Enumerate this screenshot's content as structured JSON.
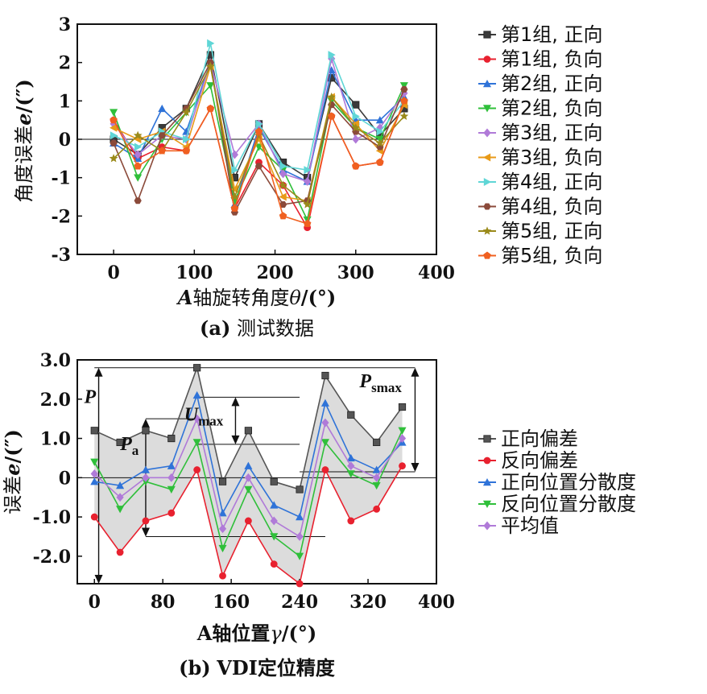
{
  "chart_data": [
    {
      "type": "line",
      "title": "",
      "caption_label": "(a)",
      "caption_text": "测试数据",
      "xlabel_var": "A",
      "xlabel_text": "轴旋转角度",
      "xlabel_sym": "θ",
      "xlabel_unit": "/(°)",
      "ylabel_text": "角度误差",
      "ylabel_sym": "e",
      "ylabel_unit": "/(″)",
      "xlim": [
        -45,
        400
      ],
      "ylim": [
        -3,
        3
      ],
      "xticks": [
        0,
        100,
        200,
        300,
        400
      ],
      "yticks": [
        -3,
        -2,
        -1,
        0,
        1,
        2,
        3
      ],
      "grid": false,
      "legend_position": "right",
      "x": [
        0,
        30,
        60,
        90,
        120,
        150,
        180,
        210,
        240,
        270,
        300,
        330,
        360
      ],
      "series": [
        {
          "name": "第1组, 正向",
          "marker": "square",
          "color": "#3a3a3a",
          "values": [
            0.0,
            -0.4,
            0.3,
            0.8,
            2.2,
            -1.0,
            0.4,
            -0.6,
            -1.0,
            1.6,
            0.9,
            0.1,
            0.8
          ]
        },
        {
          "name": "第1组, 负向",
          "marker": "circle",
          "color": "#e8212f",
          "values": [
            0.5,
            -0.5,
            -0.2,
            -0.3,
            0.8,
            -1.8,
            -0.6,
            -1.2,
            -2.3,
            0.6,
            -0.7,
            -0.6,
            1.0
          ]
        },
        {
          "name": "第2组, 正向",
          "marker": "triangle-up",
          "color": "#2f73d8",
          "values": [
            -0.1,
            -0.5,
            0.8,
            0.2,
            2.0,
            -1.7,
            0.3,
            -0.8,
            -1.1,
            1.8,
            0.5,
            0.5,
            1.1
          ]
        },
        {
          "name": "第2组, 负向",
          "marker": "triangle-down",
          "color": "#2fbf3a",
          "values": [
            0.7,
            -1.0,
            0.0,
            0.7,
            1.4,
            -1.6,
            -0.2,
            -0.8,
            -2.1,
            1.0,
            0.3,
            0.0,
            1.4
          ]
        },
        {
          "name": "第3组, 正向",
          "marker": "diamond",
          "color": "#b07ad8",
          "values": [
            0.4,
            -0.4,
            0.1,
            0.0,
            2.0,
            -0.4,
            0.4,
            -0.9,
            -1.1,
            2.1,
            0.0,
            0.3,
            1.2
          ]
        },
        {
          "name": "第3组, 负向",
          "marker": "triangle-left",
          "color": "#e89a18",
          "values": [
            0.3,
            0.0,
            0.2,
            -0.2,
            1.9,
            -1.3,
            0.0,
            -1.5,
            -1.6,
            1.1,
            0.4,
            -0.3,
            0.9
          ]
        },
        {
          "name": "第4组, 正向",
          "marker": "triangle-right",
          "color": "#5fd6d6",
          "values": [
            0.1,
            -0.2,
            0.2,
            0.0,
            2.5,
            -0.8,
            0.4,
            -0.7,
            -0.8,
            2.2,
            0.6,
            0.2,
            1.0
          ]
        },
        {
          "name": "第4组, 负向",
          "marker": "hexagon",
          "color": "#8b4a3a",
          "values": [
            -0.1,
            -1.6,
            0.1,
            0.8,
            2.0,
            -1.9,
            -0.7,
            -1.7,
            -1.6,
            0.9,
            0.2,
            -0.2,
            1.3
          ]
        },
        {
          "name": "第5组, 正向",
          "marker": "star",
          "color": "#9a8a1a",
          "values": [
            -0.5,
            0.1,
            -0.3,
            0.7,
            1.9,
            -1.5,
            0.1,
            -1.2,
            -1.7,
            1.1,
            0.3,
            -0.1,
            0.6
          ]
        },
        {
          "name": "第5组, 负向",
          "marker": "pentagon",
          "color": "#f06020",
          "values": [
            0.5,
            -0.7,
            -0.3,
            -0.3,
            0.8,
            -1.8,
            0.2,
            -2.0,
            -2.2,
            0.6,
            -0.7,
            -0.6,
            1.0
          ]
        }
      ]
    },
    {
      "type": "line",
      "title": "",
      "caption_label": "(b)",
      "caption_text": "VDI定位精度",
      "xlabel_text": "A轴位置",
      "xlabel_sym": "γ",
      "xlabel_unit": "/(°)",
      "ylabel_text": "误差",
      "ylabel_sym": "e",
      "ylabel_unit": "/(″)",
      "xlim": [
        -20,
        400
      ],
      "ylim": [
        -2.7,
        3.0
      ],
      "xticks": [
        0,
        80,
        160,
        240,
        320,
        400
      ],
      "yticks": [
        -2.0,
        -1.0,
        0,
        1.0,
        2.0,
        3.0
      ],
      "ytick_labels": [
        "-2.0",
        "-1.0",
        "0",
        "1.0",
        "2.0",
        "3.0"
      ],
      "grid": false,
      "legend_position": "right",
      "shaded_band": "between 正向偏差 and 反向偏差",
      "x": [
        0,
        30,
        60,
        90,
        120,
        150,
        180,
        210,
        240,
        270,
        300,
        330,
        360
      ],
      "series": [
        {
          "name": "正向偏差",
          "marker": "square",
          "color": "#555555",
          "values": [
            1.2,
            0.9,
            1.2,
            1.0,
            2.8,
            -0.1,
            1.2,
            -0.1,
            -0.3,
            2.6,
            1.6,
            0.9,
            1.8
          ]
        },
        {
          "name": "反向偏差",
          "marker": "circle",
          "color": "#e8212f",
          "values": [
            -1.0,
            -1.9,
            -1.1,
            -0.9,
            0.2,
            -2.5,
            -1.1,
            -2.2,
            -2.7,
            0.2,
            -1.1,
            -0.8,
            0.3
          ]
        },
        {
          "name": "正向位置分散度",
          "marker": "triangle-up",
          "color": "#2f73d8",
          "values": [
            -0.1,
            -0.2,
            0.2,
            0.3,
            2.1,
            -0.9,
            0.3,
            -0.7,
            -1.0,
            1.9,
            0.5,
            0.2,
            0.9
          ]
        },
        {
          "name": "反向位置分散度",
          "marker": "triangle-down",
          "color": "#2fbf3a",
          "values": [
            0.4,
            -0.8,
            -0.1,
            -0.3,
            0.9,
            -1.8,
            -0.3,
            -1.5,
            -2.0,
            0.9,
            0.1,
            -0.2,
            1.2
          ]
        },
        {
          "name": "平均值",
          "marker": "diamond",
          "color": "#b07ad8",
          "values": [
            0.1,
            -0.5,
            0.0,
            0.0,
            1.5,
            -1.3,
            0.0,
            -1.1,
            -1.5,
            1.4,
            0.3,
            0.0,
            1.0
          ]
        }
      ],
      "annotations": [
        {
          "text": "P",
          "sub": ""
        },
        {
          "text": "P",
          "sub": "a"
        },
        {
          "text": "U",
          "sub": "max"
        },
        {
          "text": "P",
          "sub": "smax"
        }
      ]
    }
  ]
}
